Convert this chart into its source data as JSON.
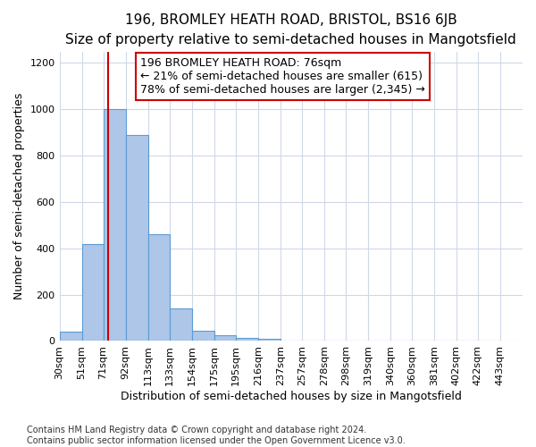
{
  "title": "196, BROMLEY HEATH ROAD, BRISTOL, BS16 6JB",
  "subtitle": "Size of property relative to semi-detached houses in Mangotsfield",
  "xlabel_bottom": "Distribution of semi-detached houses by size in Mangotsfield",
  "ylabel": "Number of semi-detached properties",
  "footer_line1": "Contains HM Land Registry data © Crown copyright and database right 2024.",
  "footer_line2": "Contains public sector information licensed under the Open Government Licence v3.0.",
  "annotation_line1": "196 BROMLEY HEATH ROAD: 76sqm",
  "annotation_line2": "← 21% of semi-detached houses are smaller (615)",
  "annotation_line3": "78% of semi-detached houses are larger (2,345) →",
  "property_size": 76,
  "bar_left_edges": [
    30,
    51,
    71,
    92,
    113,
    133,
    154,
    175,
    195,
    216,
    237,
    257,
    278,
    298,
    319,
    340,
    360,
    381,
    402,
    422
  ],
  "bar_widths": [
    21,
    20,
    21,
    21,
    20,
    21,
    21,
    20,
    21,
    21,
    20,
    21,
    20,
    21,
    21,
    20,
    21,
    21,
    20,
    21
  ],
  "bar_heights": [
    40,
    420,
    1000,
    890,
    460,
    140,
    45,
    25,
    15,
    10,
    0,
    0,
    0,
    0,
    0,
    0,
    0,
    0,
    0,
    0
  ],
  "bar_color": "#aec6e8",
  "bar_edge_color": "#5b9bd5",
  "red_line_color": "#cc0000",
  "annotation_box_color": "#cc0000",
  "ylim": [
    0,
    1250
  ],
  "yticks": [
    0,
    200,
    400,
    600,
    800,
    1000,
    1200
  ],
  "tick_labels": [
    "30sqm",
    "51sqm",
    "71sqm",
    "92sqm",
    "113sqm",
    "133sqm",
    "154sqm",
    "175sqm",
    "195sqm",
    "216sqm",
    "237sqm",
    "257sqm",
    "278sqm",
    "298sqm",
    "319sqm",
    "340sqm",
    "360sqm",
    "381sqm",
    "402sqm",
    "422sqm",
    "443sqm"
  ],
  "background_color": "#ffffff",
  "grid_color": "#d0d8e8",
  "title_fontsize": 11,
  "subtitle_fontsize": 10,
  "axis_label_fontsize": 9,
  "tick_fontsize": 8,
  "annotation_fontsize": 9,
  "footer_fontsize": 7
}
